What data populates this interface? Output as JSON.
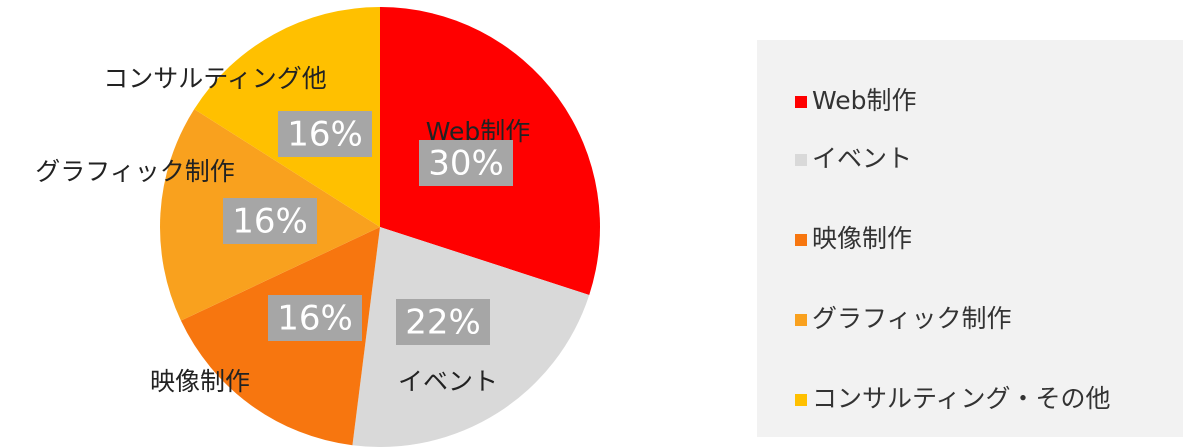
{
  "chart_data": {
    "type": "pie",
    "categories": [
      "Web制作",
      "イベント",
      "映像制作",
      "グラフィック制作",
      "コンサルティング・その他"
    ],
    "labels": [
      "Web制作",
      "イベント",
      "映像制作",
      "グラフィック制作",
      "コンサルティング他"
    ],
    "values": [
      30,
      22,
      16,
      16,
      16
    ],
    "value_labels": [
      "30%",
      "22%",
      "16%",
      "16%",
      "16%"
    ],
    "colors": [
      "#ff0000",
      "#d9d9d9",
      "#f7760f",
      "#f9a11e",
      "#ffc000"
    ],
    "legend": "right"
  }
}
